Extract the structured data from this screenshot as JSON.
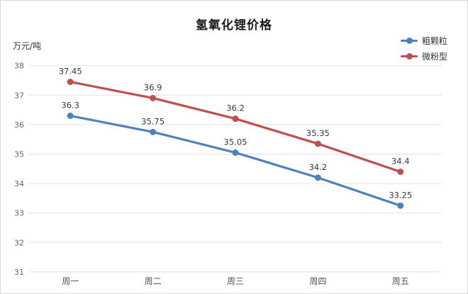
{
  "chart_data": {
    "type": "line",
    "title": "氢氧化锂价格",
    "ylabel": "万元/吨",
    "xlabel": "",
    "categories": [
      "周一",
      "周二",
      "周三",
      "周四",
      "周五"
    ],
    "series": [
      {
        "name": "粗颗粒",
        "color": "#4F81BD",
        "values": [
          36.3,
          35.75,
          35.05,
          34.2,
          33.25
        ]
      },
      {
        "name": "微粉型",
        "color": "#C0504D",
        "values": [
          37.45,
          36.9,
          36.2,
          35.35,
          34.4
        ]
      }
    ],
    "ylim": [
      31,
      38
    ],
    "ytick_step": 1,
    "yticks": [
      31,
      32,
      33,
      34,
      35,
      36,
      37,
      38
    ],
    "grid": true,
    "data_labels": true,
    "legend_position": "top-right",
    "gridline_color": "#e2e2e2",
    "tick_label_color": "#666666",
    "data_label_color": "#3a3a3a"
  }
}
